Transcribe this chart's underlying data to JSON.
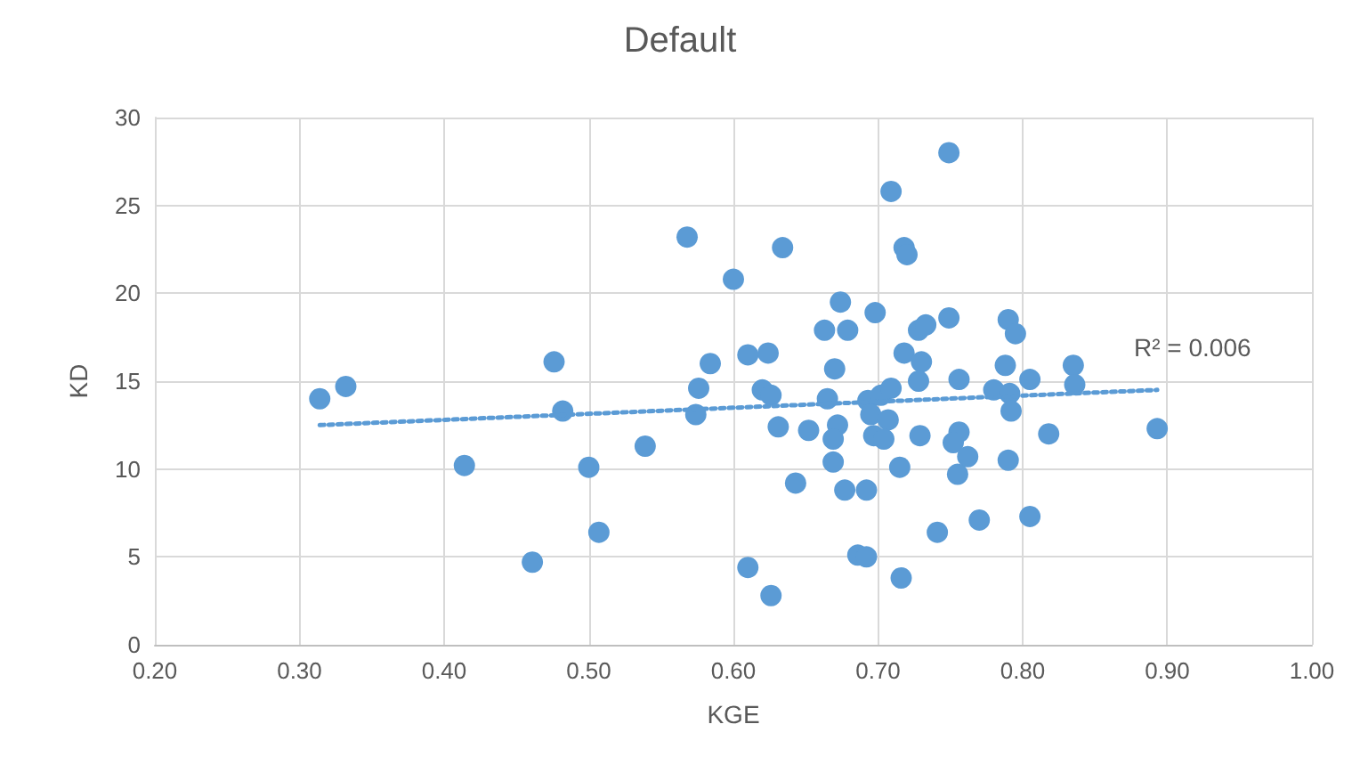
{
  "chart_data": {
    "type": "scatter",
    "title": "Default",
    "xlabel": "KGE",
    "ylabel": "KD",
    "x": [
      0.314,
      0.332,
      0.414,
      0.476,
      0.482,
      0.461,
      0.5,
      0.507,
      0.539,
      0.568,
      0.6,
      0.584,
      0.576,
      0.574,
      0.61,
      0.749,
      0.709,
      0.634,
      0.718,
      0.72,
      0.674,
      0.698,
      0.663,
      0.679,
      0.728,
      0.733,
      0.749,
      0.79,
      0.795,
      0.624,
      0.67,
      0.718,
      0.73,
      0.728,
      0.756,
      0.788,
      0.805,
      0.835,
      0.836,
      0.62,
      0.626,
      0.665,
      0.693,
      0.702,
      0.709,
      0.78,
      0.791,
      0.792,
      0.695,
      0.707,
      0.631,
      0.652,
      0.672,
      0.669,
      0.697,
      0.704,
      0.729,
      0.756,
      0.752,
      0.762,
      0.79,
      0.818,
      0.893,
      0.669,
      0.715,
      0.755,
      0.643,
      0.677,
      0.692,
      0.77,
      0.805,
      0.741,
      0.686,
      0.692,
      0.716,
      0.626,
      0.61
    ],
    "series": [
      {
        "color": "#5b9bd5",
        "values": [
          14.0,
          14.7,
          10.2,
          16.1,
          13.3,
          4.7,
          10.1,
          6.4,
          11.3,
          23.2,
          20.8,
          16.0,
          14.6,
          13.1,
          16.5,
          28.0,
          25.8,
          22.6,
          22.6,
          22.2,
          19.5,
          18.9,
          17.9,
          17.9,
          17.9,
          18.2,
          18.6,
          18.5,
          17.7,
          16.6,
          15.7,
          16.6,
          16.1,
          15.0,
          15.1,
          15.9,
          15.1,
          15.9,
          14.8,
          14.5,
          14.2,
          14.0,
          13.9,
          14.2,
          14.6,
          14.5,
          14.3,
          13.3,
          13.1,
          12.8,
          12.4,
          12.2,
          12.5,
          11.7,
          11.9,
          11.7,
          11.9,
          12.1,
          11.5,
          10.7,
          10.5,
          12.0,
          12.3,
          10.4,
          10.1,
          9.7,
          9.2,
          8.8,
          8.8,
          7.1,
          7.3,
          6.4,
          5.1,
          5.0,
          3.8,
          2.8,
          4.4
        ]
      },
      {
        "type": "line",
        "color": "#5b9bd5",
        "line_style": "dotted",
        "marker": "none",
        "x": [
          0.314,
          0.893
        ],
        "values": [
          12.5,
          14.5
        ]
      }
    ],
    "annotations": [
      "R² = 0.006"
    ],
    "xlim": [
      0.2,
      1.0
    ],
    "xticks": [
      {
        "value": 0.2,
        "label": "0.20"
      },
      {
        "value": 0.3,
        "label": "0.30"
      },
      {
        "value": 0.4,
        "label": "0.40"
      },
      {
        "value": 0.5,
        "label": "0.50"
      },
      {
        "value": 0.6,
        "label": "0.60"
      },
      {
        "value": 0.7,
        "label": "0.70"
      },
      {
        "value": 0.8,
        "label": "0.80"
      },
      {
        "value": 0.9,
        "label": "0.90"
      },
      {
        "value": 1.0,
        "label": "1.00"
      }
    ],
    "ylim": [
      0,
      30
    ],
    "yticks": [
      0,
      5,
      10,
      15,
      20,
      25,
      30
    ],
    "grid": true,
    "marker": "circle"
  }
}
